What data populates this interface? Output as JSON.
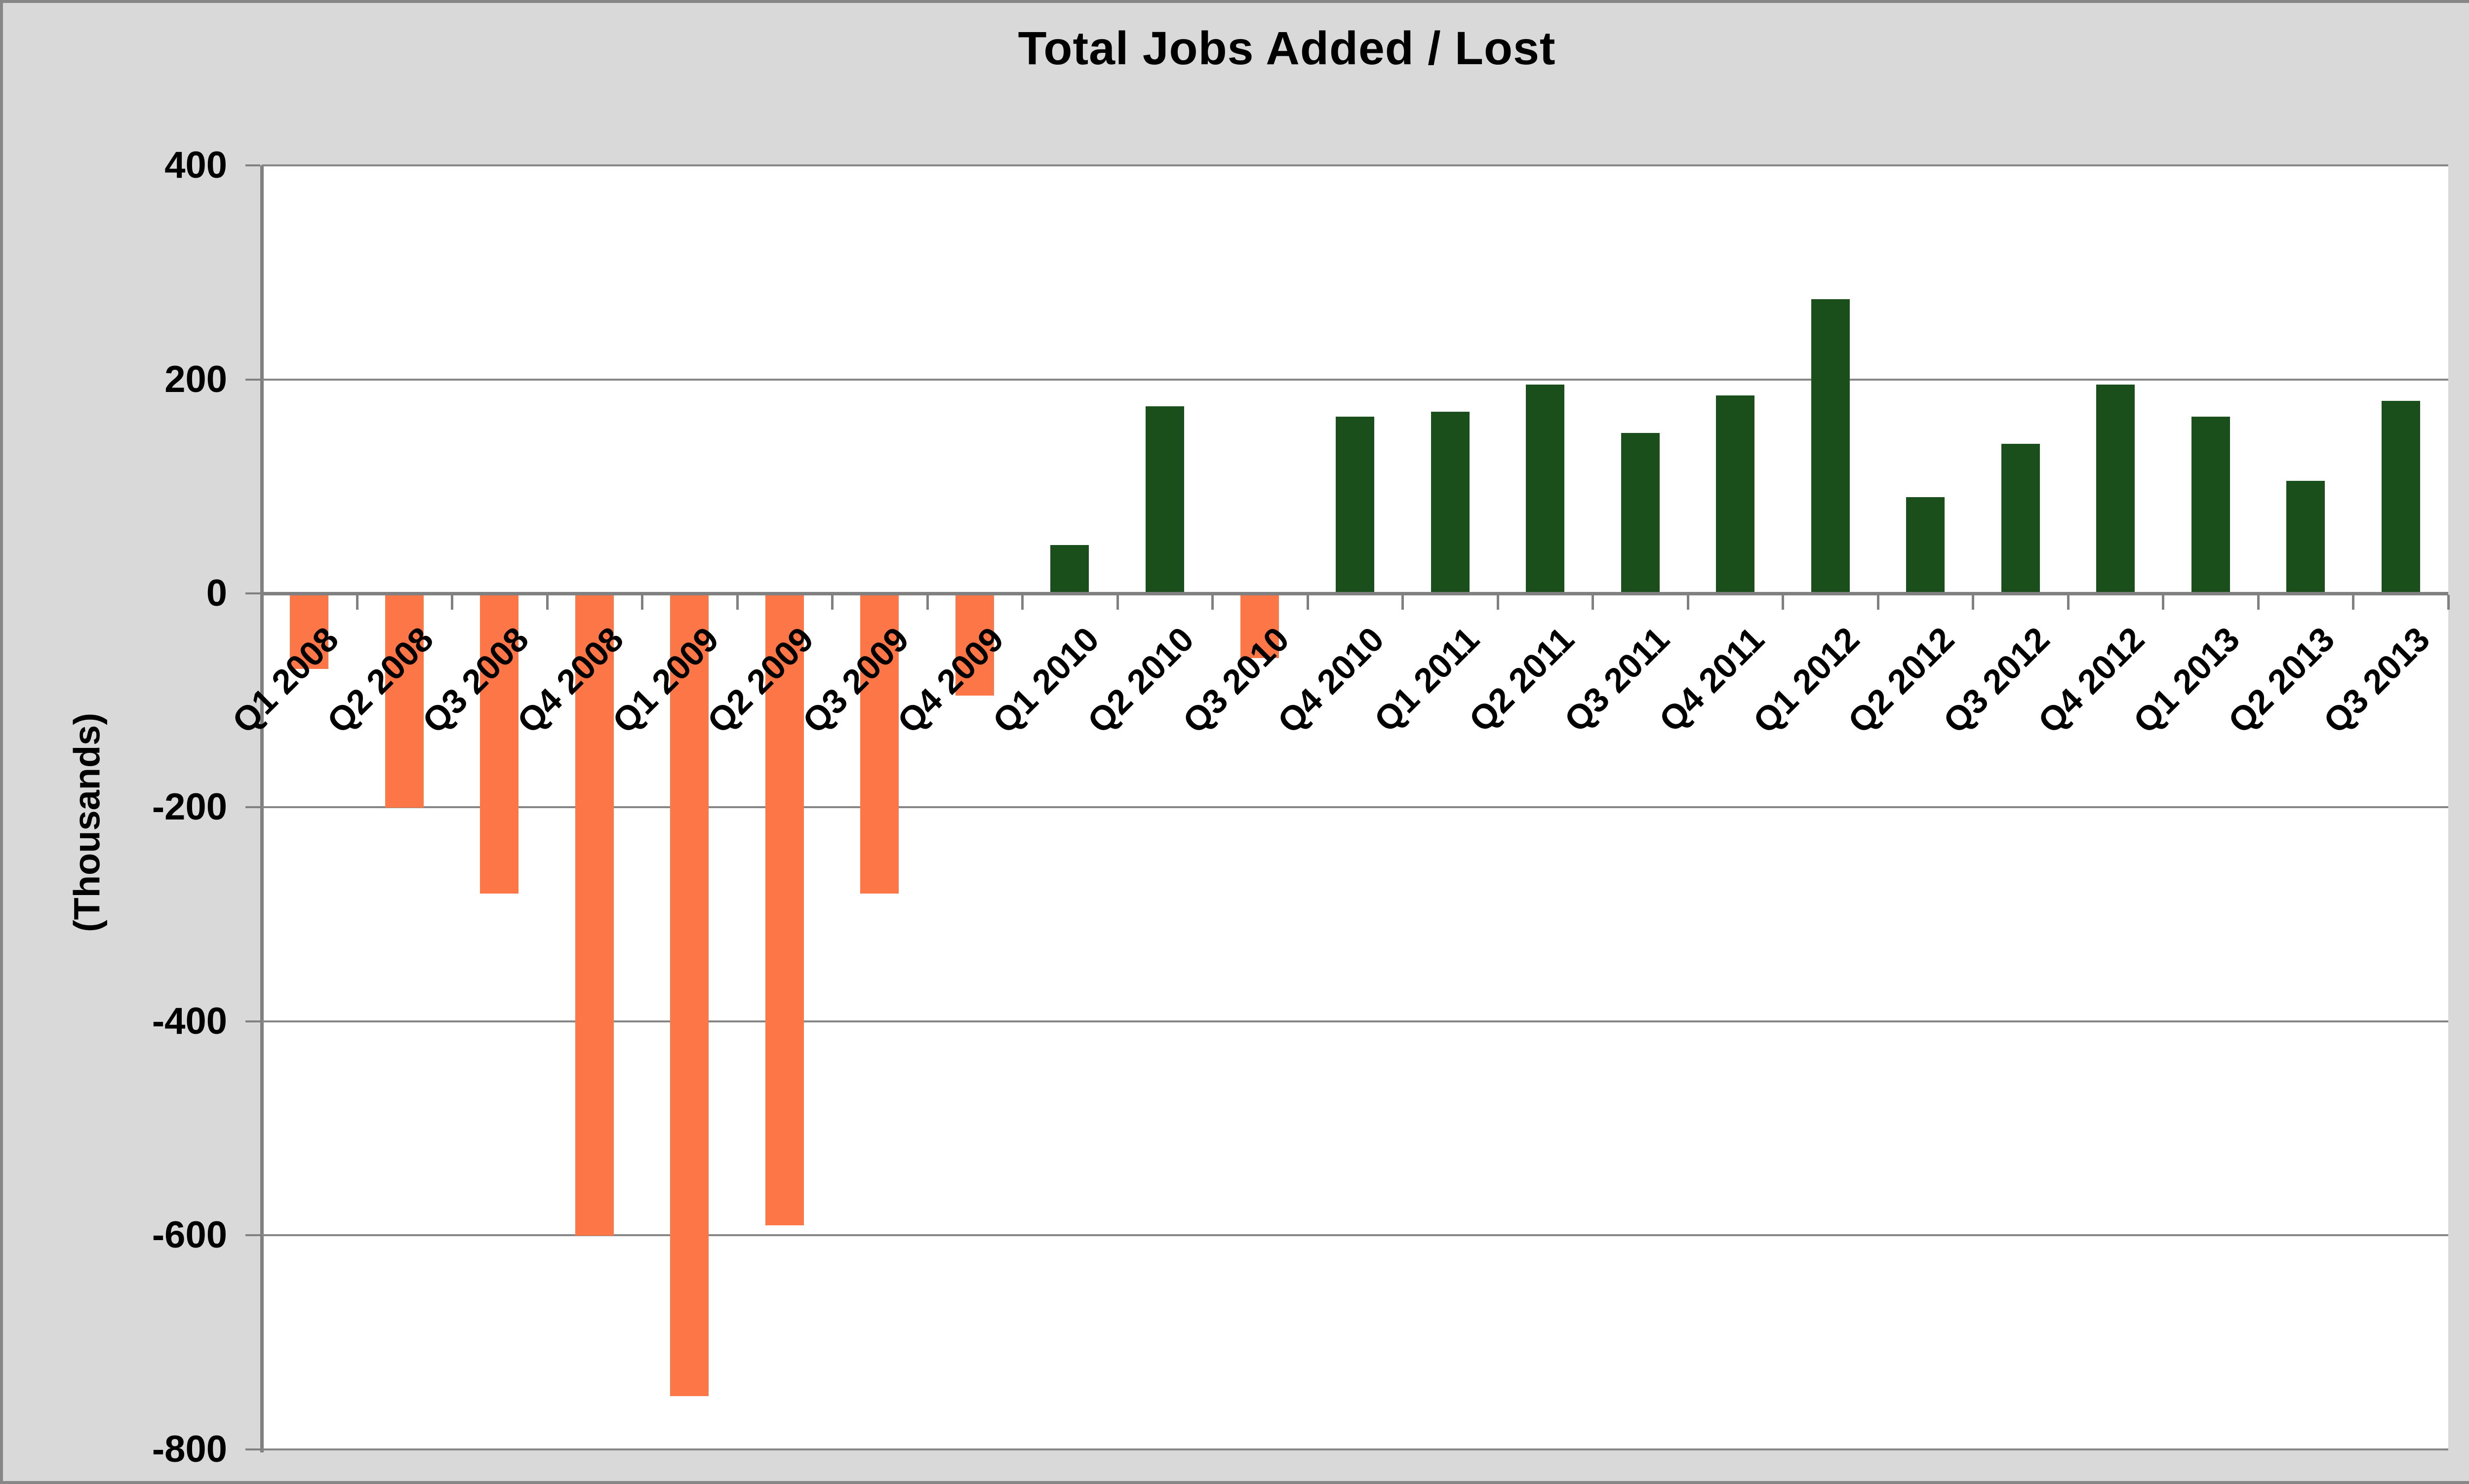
{
  "chart_data": {
    "type": "bar",
    "title": "Total Jobs Added / Lost",
    "ylabel": "(Thousands)",
    "xlabel": "",
    "categories": [
      "Q1 2008",
      "Q2 2008",
      "Q3 2008",
      "Q4 2008",
      "Q1 2009",
      "Q2 2009",
      "Q3 2009",
      "Q4 2009",
      "Q1 2010",
      "Q2 2010",
      "Q3 2010",
      "Q4 2010",
      "Q1 2011",
      "Q2 2011",
      "Q3 2011",
      "Q4 2011",
      "Q1 2012",
      "Q2 2012",
      "Q3 2012",
      "Q4 2012",
      "Q1 2013",
      "Q2 2013",
      "Q3 2013"
    ],
    "values": [
      -70,
      -200,
      -280,
      -600,
      -750,
      -590,
      -280,
      -95,
      45,
      175,
      -60,
      165,
      170,
      195,
      150,
      185,
      275,
      90,
      140,
      195,
      165,
      105,
      180
    ],
    "ylim": [
      -800,
      400
    ],
    "yticks": [
      400,
      200,
      0,
      -200,
      -400,
      -600,
      -800
    ],
    "ytick_labels": [
      "400",
      "200",
      "0",
      "-200",
      "-400",
      "-600",
      "-800"
    ],
    "grid": "horizontal",
    "legend": "none",
    "colors": {
      "positive": "#1A4E1B",
      "negative": "#FC7647",
      "gridline": "#868686",
      "axis": "#808080",
      "plot_background": "#FFFFFF",
      "chart_background": "#D9D9D9",
      "border": "#878787",
      "text": "#000000"
    }
  }
}
